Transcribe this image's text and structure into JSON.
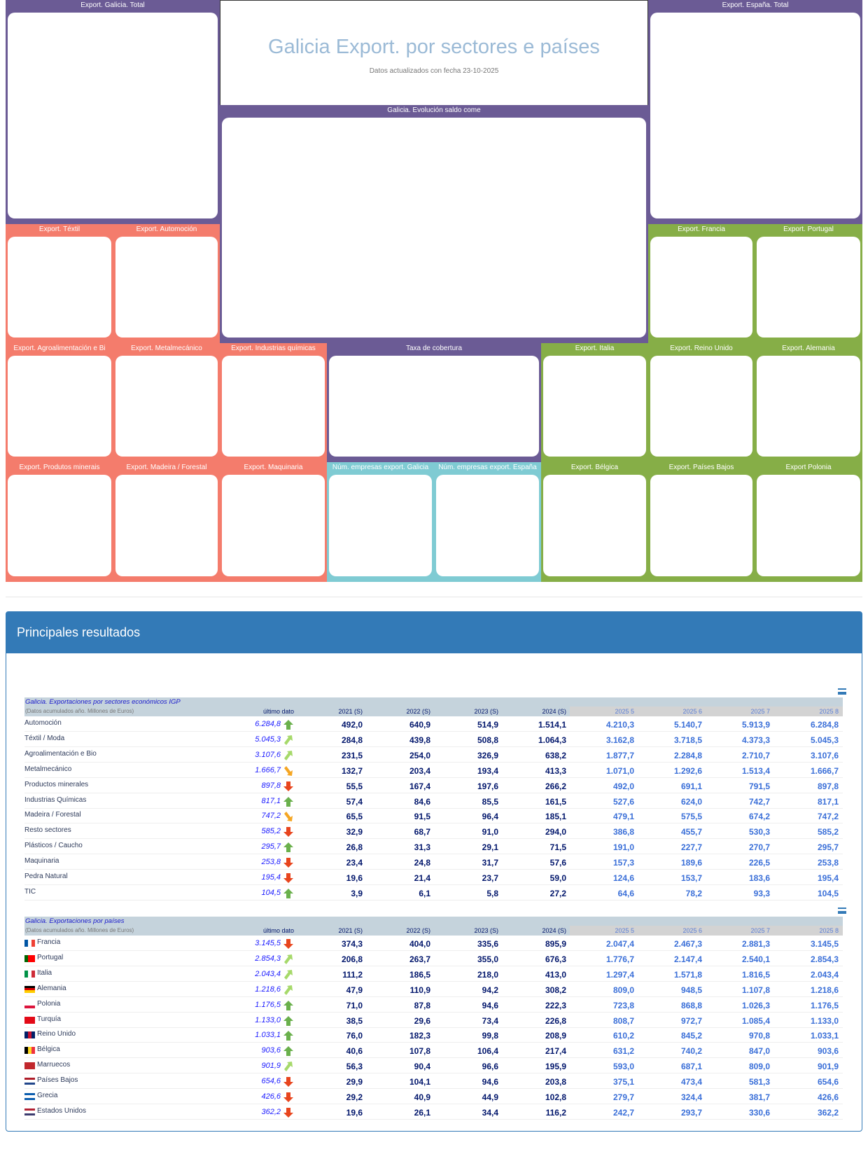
{
  "header": {
    "title": "Galicia Export. por sectores e países",
    "subtitle": "Datos actualizados con fecha 23-10-2025"
  },
  "panels": [
    "Export. Galicia. Total",
    "Galicia. Evolución saldo come",
    "Export. España. Total",
    "Export. Téxtil",
    "Export. Automoción",
    "Export. Francia",
    "Export. Portugal",
    "Export. Agroalimentación e Bi",
    "Export. Metalmecánico",
    "Export. Industrias químicas",
    "Taxa de cobertura",
    "Export. Italia",
    "Export. Reino Unido",
    "Export. Alemania",
    "Export. Produtos minerais",
    "Export. Madeira / Forestal",
    "Export. Maquinaria",
    "Núm. empresas export. Galicia",
    "Núm. empresas export. España",
    "Export. Bélgica",
    "Export. Países Bajos",
    "Export Polonia"
  ],
  "results": {
    "title": "Principales resultados"
  },
  "tables": [
    {
      "title": "Galicia. Exportaciones por sectores económicos IGP",
      "subtitle": "(Datos acumulados año. Millones de Euros)",
      "columns": [
        "último dato",
        "2021 (S)",
        "2022 (S)",
        "2023 (S)",
        "2024 (S)",
        "2025 5",
        "2025 6",
        "2025 7",
        "2025 8"
      ],
      "rows": [
        {
          "label": "Automoción",
          "cells": [
            "6.284,8",
            "492,0",
            "640,9",
            "514,9",
            "1.514,1",
            "4.210,3",
            "5.140,7",
            "5.913,9",
            "6.284,8"
          ]
        },
        {
          "label": "Téxtil / Moda",
          "cells": [
            "5.045,3",
            "284,8",
            "439,8",
            "508,8",
            "1.064,3",
            "3.162,8",
            "3.718,5",
            "4.373,3",
            "5.045,3"
          ]
        },
        {
          "label": "Agroalimentación e Bio",
          "cells": [
            "3.107,6",
            "231,5",
            "254,0",
            "326,9",
            "638,2",
            "1.877,7",
            "2.284,8",
            "2.710,7",
            "3.107,6"
          ]
        },
        {
          "label": "Metalmecánico",
          "cells": [
            "1.666,7",
            "132,7",
            "203,4",
            "193,4",
            "413,3",
            "1.071,0",
            "1.292,6",
            "1.513,4",
            "1.666,7"
          ]
        },
        {
          "label": "Productos minerales",
          "cells": [
            "897,8",
            "55,5",
            "167,4",
            "197,6",
            "266,2",
            "492,0",
            "691,1",
            "791,5",
            "897,8"
          ]
        },
        {
          "label": "Industrias Químicas",
          "cells": [
            "817,1",
            "57,4",
            "84,6",
            "85,5",
            "161,5",
            "527,6",
            "624,0",
            "742,7",
            "817,1"
          ]
        },
        {
          "label": "Madeira / Forestal",
          "cells": [
            "747,2",
            "65,5",
            "91,5",
            "96,4",
            "185,1",
            "479,1",
            "575,5",
            "674,2",
            "747,2"
          ]
        },
        {
          "label": "Resto sectores",
          "cells": [
            "585,2",
            "32,9",
            "68,7",
            "91,0",
            "294,0",
            "386,8",
            "455,7",
            "530,3",
            "585,2"
          ]
        },
        {
          "label": "Plásticos / Caucho",
          "cells": [
            "295,7",
            "26,8",
            "31,3",
            "29,1",
            "71,5",
            "191,0",
            "227,7",
            "270,7",
            "295,7"
          ]
        },
        {
          "label": "Maquinaria",
          "cells": [
            "253,8",
            "23,4",
            "24,8",
            "31,7",
            "57,6",
            "157,3",
            "189,6",
            "226,5",
            "253,8"
          ]
        },
        {
          "label": "Pedra Natural",
          "cells": [
            "195,4",
            "19,6",
            "21,4",
            "23,7",
            "59,0",
            "124,6",
            "153,7",
            "183,6",
            "195,4"
          ]
        },
        {
          "label": "TIC",
          "cells": [
            "104,5",
            "3,9",
            "6,1",
            "5,8",
            "27,2",
            "64,6",
            "78,2",
            "93,3",
            "104,5"
          ]
        }
      ]
    },
    {
      "title": "Galicia. Exportaciones por países",
      "subtitle": "(Datos acumulados año. Millones de Euros)",
      "columns": [
        "último dato",
        "2021 (S)",
        "2022 (S)",
        "2023 (S)",
        "2024 (S)",
        "2025 5",
        "2025 6",
        "2025 7",
        "2025 8"
      ],
      "rows": [
        {
          "label": "Francia",
          "cells": [
            "3.145,5",
            "374,3",
            "404,0",
            "335,6",
            "895,9",
            "2.047,4",
            "2.467,3",
            "2.881,3",
            "3.145,5"
          ]
        },
        {
          "label": "Portugal",
          "cells": [
            "2.854,3",
            "206,8",
            "263,7",
            "355,0",
            "676,3",
            "1.776,7",
            "2.147,4",
            "2.540,1",
            "2.854,3"
          ]
        },
        {
          "label": "Italia",
          "cells": [
            "2.043,4",
            "111,2",
            "186,5",
            "218,0",
            "413,0",
            "1.297,4",
            "1.571,8",
            "1.816,5",
            "2.043,4"
          ]
        },
        {
          "label": "Alemania",
          "cells": [
            "1.218,6",
            "47,9",
            "110,9",
            "94,2",
            "308,2",
            "809,0",
            "948,5",
            "1.107,8",
            "1.218,6"
          ]
        },
        {
          "label": "Polonia",
          "cells": [
            "1.176,5",
            "71,0",
            "87,8",
            "94,6",
            "222,3",
            "723,8",
            "868,8",
            "1.026,3",
            "1.176,5"
          ]
        },
        {
          "label": "Turquía",
          "cells": [
            "1.133,0",
            "38,5",
            "29,6",
            "73,4",
            "226,8",
            "808,7",
            "972,7",
            "1.085,4",
            "1.133,0"
          ]
        },
        {
          "label": "Reino Unido",
          "cells": [
            "1.033,1",
            "76,0",
            "182,3",
            "99,8",
            "208,9",
            "610,2",
            "845,2",
            "970,8",
            "1.033,1"
          ]
        },
        {
          "label": "Bélgica",
          "cells": [
            "903,6",
            "40,6",
            "107,8",
            "106,4",
            "217,4",
            "631,2",
            "740,2",
            "847,0",
            "903,6"
          ]
        },
        {
          "label": "Marruecos",
          "cells": [
            "901,9",
            "56,3",
            "90,4",
            "96,6",
            "195,9",
            "593,0",
            "687,1",
            "809,0",
            "901,9"
          ]
        },
        {
          "label": "Países Bajos",
          "cells": [
            "654,6",
            "29,9",
            "104,1",
            "94,6",
            "203,8",
            "375,1",
            "473,4",
            "581,3",
            "654,6"
          ]
        },
        {
          "label": "Grecia",
          "cells": [
            "426,6",
            "29,2",
            "40,9",
            "44,9",
            "102,8",
            "279,7",
            "324,4",
            "381,7",
            "426,6"
          ]
        },
        {
          "label": "Estados Unidos",
          "cells": [
            "362,2",
            "19,6",
            "26,1",
            "34,4",
            "116,2",
            "242,7",
            "293,7",
            "330,6",
            "362,2"
          ]
        }
      ]
    }
  ]
}
